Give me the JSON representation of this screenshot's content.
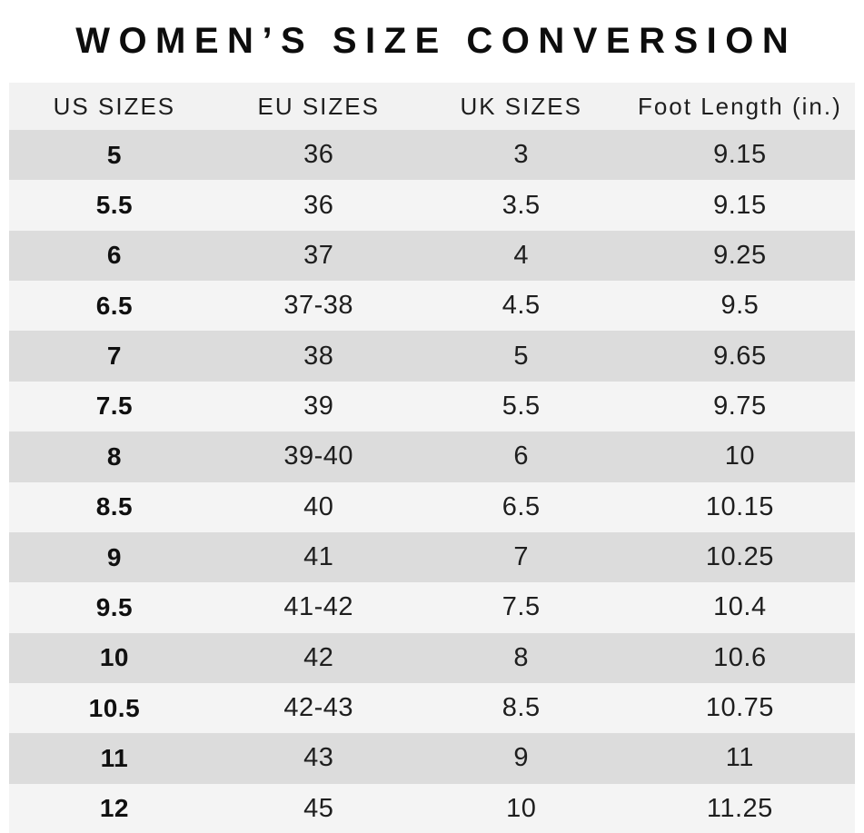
{
  "title": "WOMEN’S SIZE CONVERSION",
  "chart_data": {
    "type": "table",
    "title": "WOMEN’S SIZE CONVERSION",
    "columns": [
      "US SIZES",
      "EU SIZES",
      "UK SIZES",
      "Foot Length (in.)"
    ],
    "rows": [
      [
        "5",
        "36",
        "3",
        "9.15"
      ],
      [
        "5.5",
        "36",
        "3.5",
        "9.15"
      ],
      [
        "6",
        "37",
        "4",
        "9.25"
      ],
      [
        "6.5",
        "37-38",
        "4.5",
        "9.5"
      ],
      [
        "7",
        "38",
        "5",
        "9.65"
      ],
      [
        "7.5",
        "39",
        "5.5",
        "9.75"
      ],
      [
        "8",
        "39-40",
        "6",
        "10"
      ],
      [
        "8.5",
        "40",
        "6.5",
        "10.15"
      ],
      [
        "9",
        "41",
        "7",
        "10.25"
      ],
      [
        "9.5",
        "41-42",
        "7.5",
        "10.4"
      ],
      [
        "10",
        "42",
        "8",
        "10.6"
      ],
      [
        "10.5",
        "42-43",
        "8.5",
        "10.75"
      ],
      [
        "11",
        "43",
        "9",
        "11"
      ],
      [
        "12",
        "45",
        "10",
        "11.25"
      ]
    ],
    "layout": {
      "first_row_shade": "dark",
      "alternating_rows": true,
      "grid": false
    }
  },
  "colors": {
    "header_bg": "#f2f2f2",
    "row_dark": "#dcdcdc",
    "row_light": "#f4f4f4",
    "text": "#1e1e1e",
    "title_text": "#0d0d0d",
    "page_bg": "#ffffff"
  }
}
